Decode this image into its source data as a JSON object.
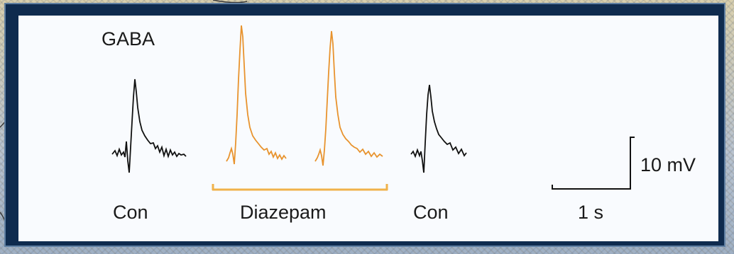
{
  "figure": {
    "title": "GABA",
    "condition_labels": {
      "con_left": "Con",
      "drug": "Diazepam",
      "con_right": "Con"
    },
    "scale_bar": {
      "voltage_label": "10 mV",
      "time_label": "1 s"
    },
    "colors": {
      "control_trace": "#111111",
      "drug_trace": "#e8932e",
      "drug_bar": "#f0b24a",
      "frame": "#0f2b4e",
      "panel": "#f9fbfe"
    }
  }
}
